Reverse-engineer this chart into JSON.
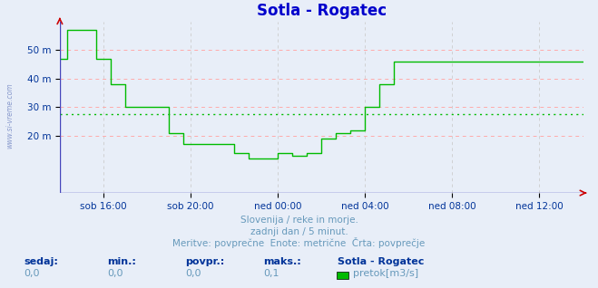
{
  "title": "Sotla - Rogatec",
  "title_color": "#0000cc",
  "title_fontsize": 12,
  "bg_color": "#e8eef8",
  "plot_bg_color": "#e8eef8",
  "line_color": "#00bb00",
  "avg_value": 27.5,
  "yticks": [
    20,
    30,
    40,
    50
  ],
  "ytick_labels": [
    "20 m",
    "30 m",
    "40 m",
    "50 m"
  ],
  "ylim": [
    0,
    60
  ],
  "xlim": [
    0,
    288
  ],
  "xtick_positions": [
    24,
    72,
    120,
    168,
    216,
    264
  ],
  "xtick_labels": [
    "sob 16:00",
    "sob 20:00",
    "ned 00:00",
    "ned 04:00",
    "ned 08:00",
    "ned 12:00"
  ],
  "subtitle1": "Slovenija / reke in morje.",
  "subtitle2": "zadnji dan / 5 minut.",
  "subtitle3": "Meritve: povprečne  Enote: metrične  Črta: povprečje",
  "subtitle_color": "#6699bb",
  "footer_labels": [
    "sedaj:",
    "min.:",
    "povpr.:",
    "maks.:"
  ],
  "footer_values": [
    "0,0",
    "0,0",
    "0,0",
    "0,1"
  ],
  "footer_station": "Sotla - Rogatec",
  "footer_legend": "pretok[m3/s]",
  "footer_color": "#6699bb",
  "footer_bold_color": "#003399",
  "watermark": "www.si-vreme.com",
  "data_x": [
    0,
    4,
    4,
    20,
    20,
    28,
    28,
    36,
    36,
    60,
    60,
    68,
    68,
    96,
    96,
    104,
    104,
    120,
    120,
    128,
    128,
    136,
    136,
    144,
    144,
    152,
    152,
    160,
    160,
    168,
    168,
    176,
    176,
    184,
    184,
    288
  ],
  "data_y": [
    47,
    47,
    57,
    57,
    47,
    47,
    38,
    38,
    30,
    30,
    21,
    21,
    17,
    17,
    14,
    14,
    12,
    12,
    14,
    14,
    13,
    13,
    14,
    14,
    19,
    19,
    21,
    21,
    22,
    22,
    30,
    30,
    38,
    38,
    46,
    46
  ]
}
